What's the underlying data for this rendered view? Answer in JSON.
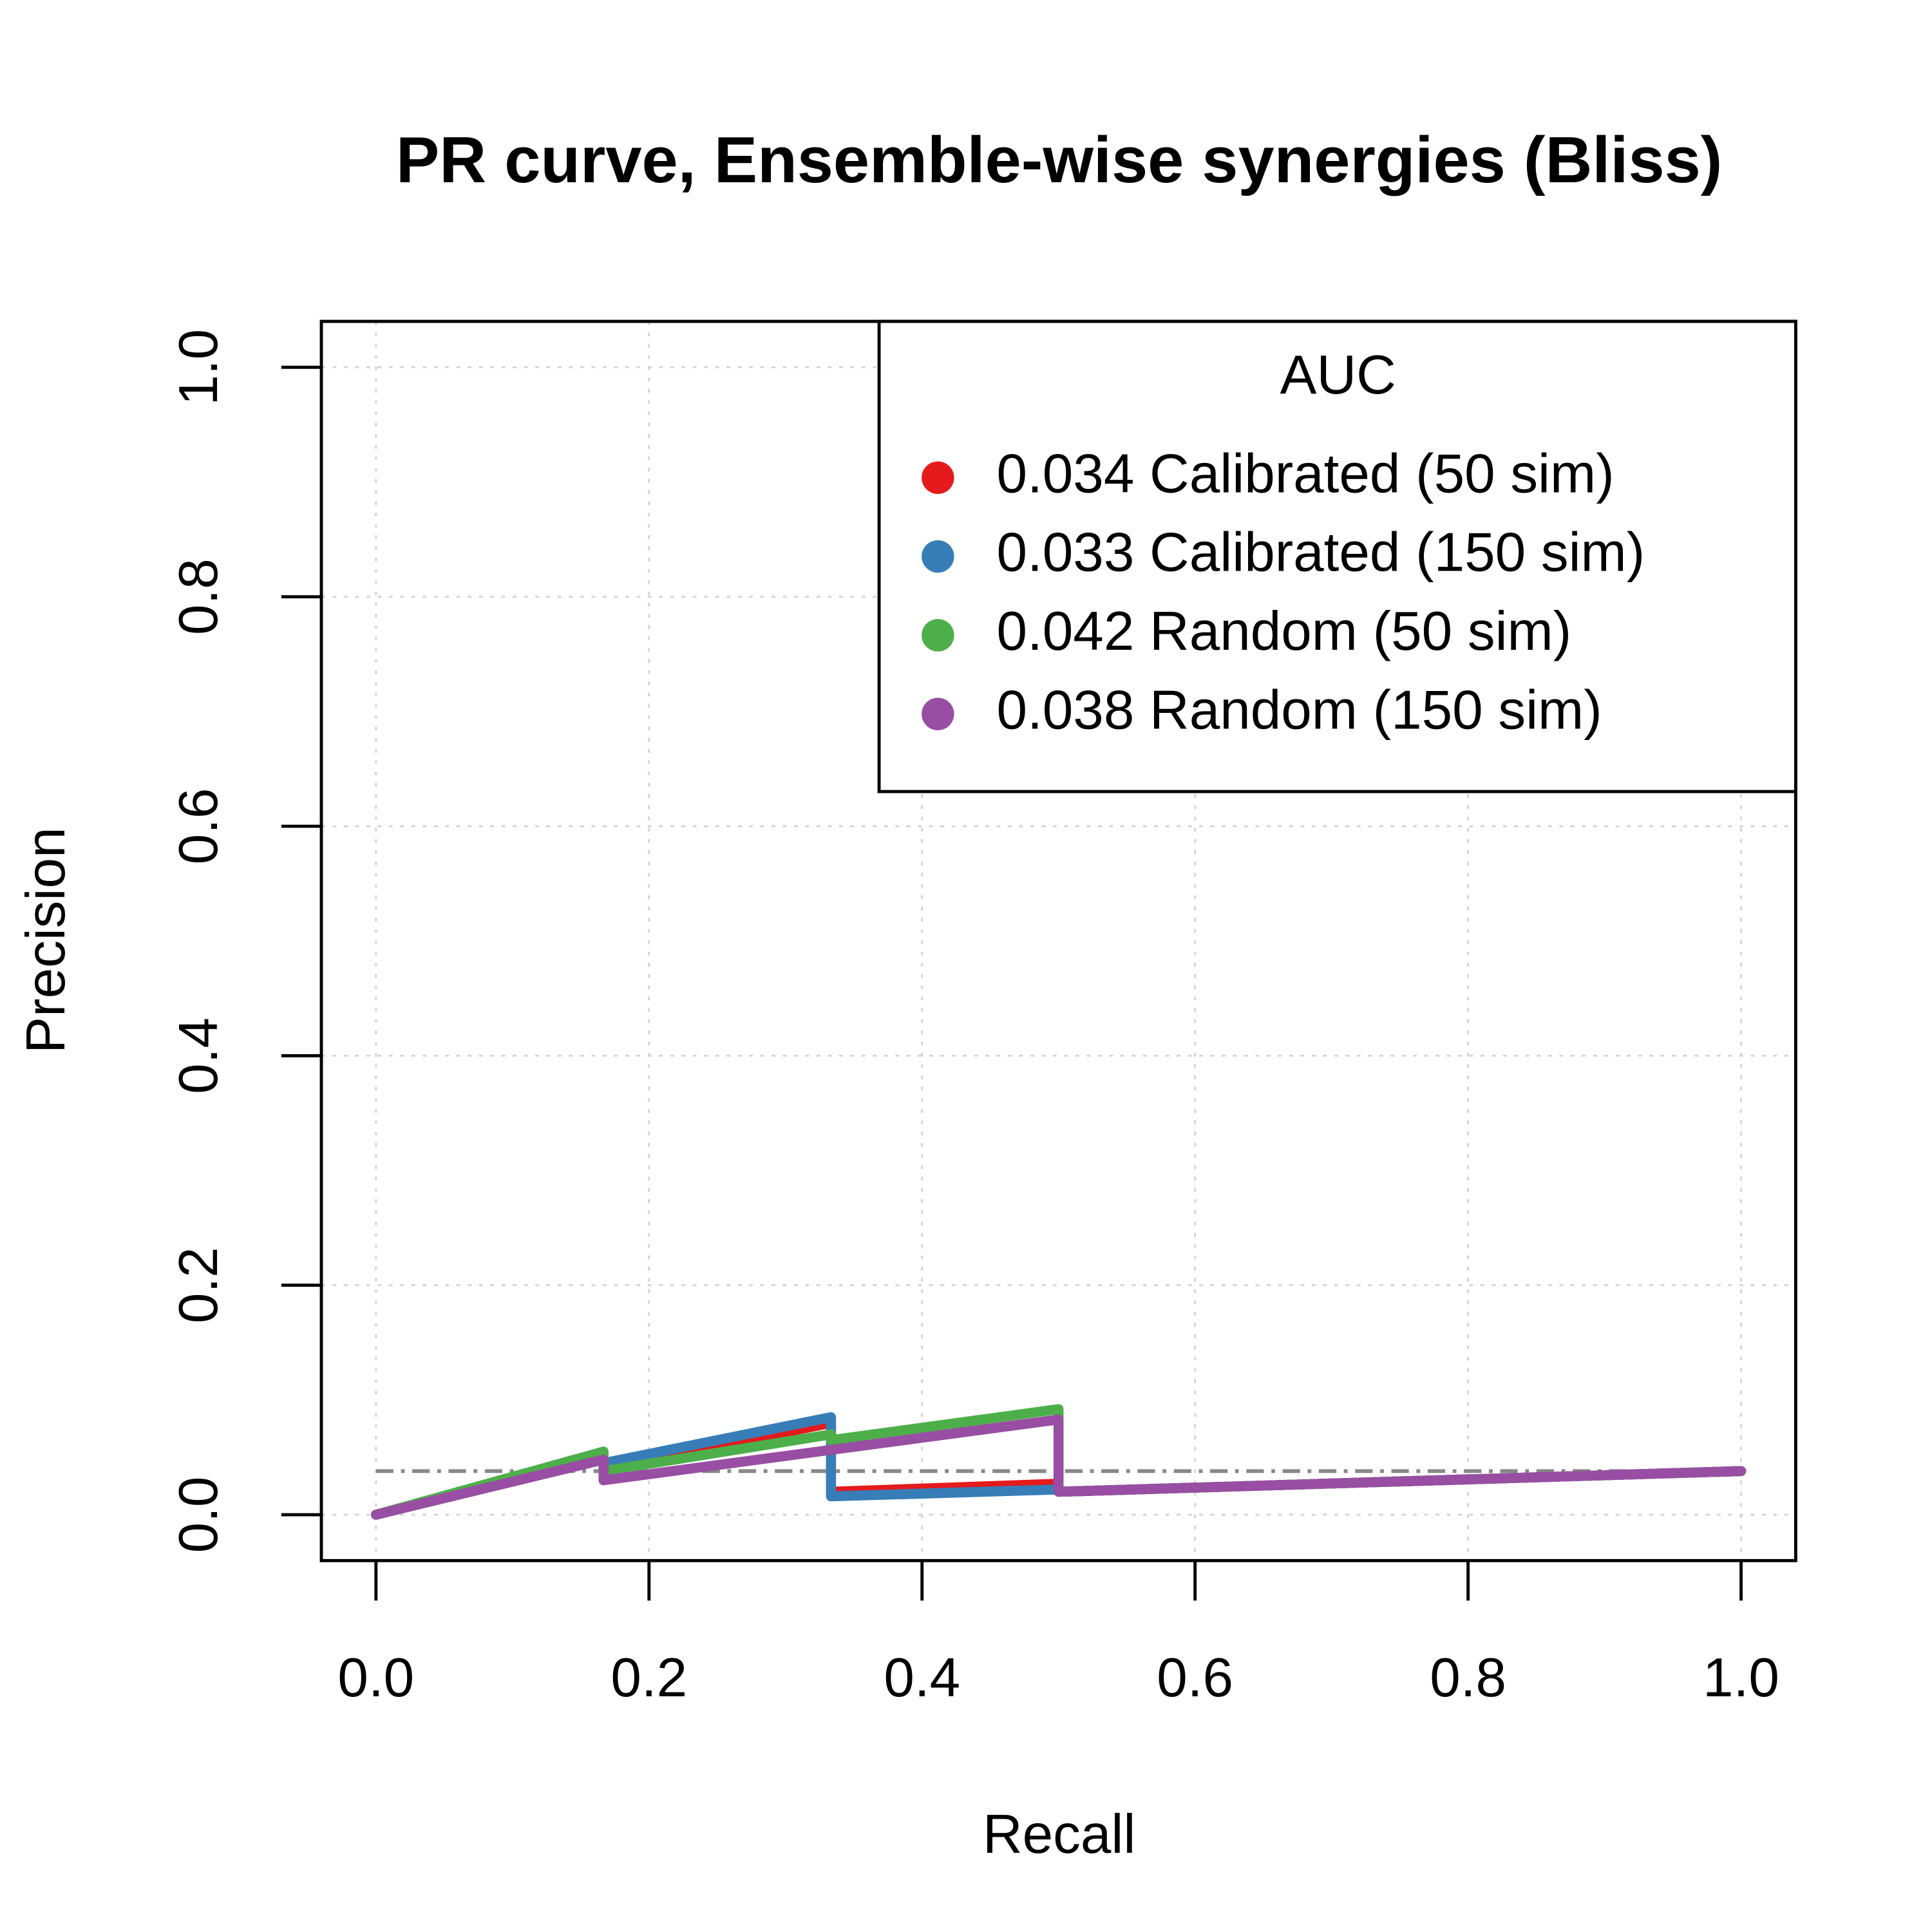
{
  "chart_data": {
    "type": "line",
    "title": "PR curve, Ensemble-wise synergies (Bliss)",
    "x_label": "Recall",
    "y_label": "Precision",
    "xlim": [
      -0.04,
      1.04
    ],
    "ylim": [
      -0.04,
      1.04
    ],
    "xticks": [
      {
        "value": 0,
        "label": "0.0"
      },
      0.2,
      0.4,
      0.6,
      0.8,
      {
        "value": 1,
        "label": "1.0"
      }
    ],
    "yticks": [
      {
        "value": 0,
        "label": "0.0"
      },
      0.2,
      0.4,
      0.6,
      0.8,
      {
        "value": 1,
        "label": "1.0"
      }
    ],
    "grid": true,
    "legend_title": "AUC",
    "legend_position": "top-right",
    "baseline": 0.038,
    "baseline_color": "#888888",
    "series": [
      {
        "name": "0.034 Calibrated (50 sim)",
        "color": "#e41a1c",
        "x": [
          0,
          0.1667,
          0.1667,
          0.3333,
          0.3333,
          0.5,
          0.5,
          1
        ],
        "values": [
          0,
          0.05,
          0.04,
          0.08,
          0.02,
          0.027,
          0.02,
          0.038
        ]
      },
      {
        "name": "0.033 Calibrated (150 sim)",
        "color": "#377eb8",
        "x": [
          0,
          0.1667,
          0.1667,
          0.3333,
          0.3333,
          0.5,
          0.5,
          1
        ],
        "values": [
          0,
          0.05,
          0.045,
          0.085,
          0.016,
          0.022,
          0.02,
          0.038
        ]
      },
      {
        "name": "0.042 Random (50 sim)",
        "color": "#4daf4a",
        "x": [
          0,
          0.1667,
          0.1667,
          0.3333,
          0.3333,
          0.5,
          0.5,
          1
        ],
        "values": [
          0,
          0.055,
          0.038,
          0.07,
          0.065,
          0.092,
          0.02,
          0.038
        ]
      },
      {
        "name": "0.038 Random (150 sim)",
        "color": "#984ea3",
        "x": [
          0,
          0.1667,
          0.1667,
          0.5,
          0.5,
          1
        ],
        "values": [
          0,
          0.048,
          0.03,
          0.083,
          0.02,
          0.038
        ]
      }
    ]
  }
}
